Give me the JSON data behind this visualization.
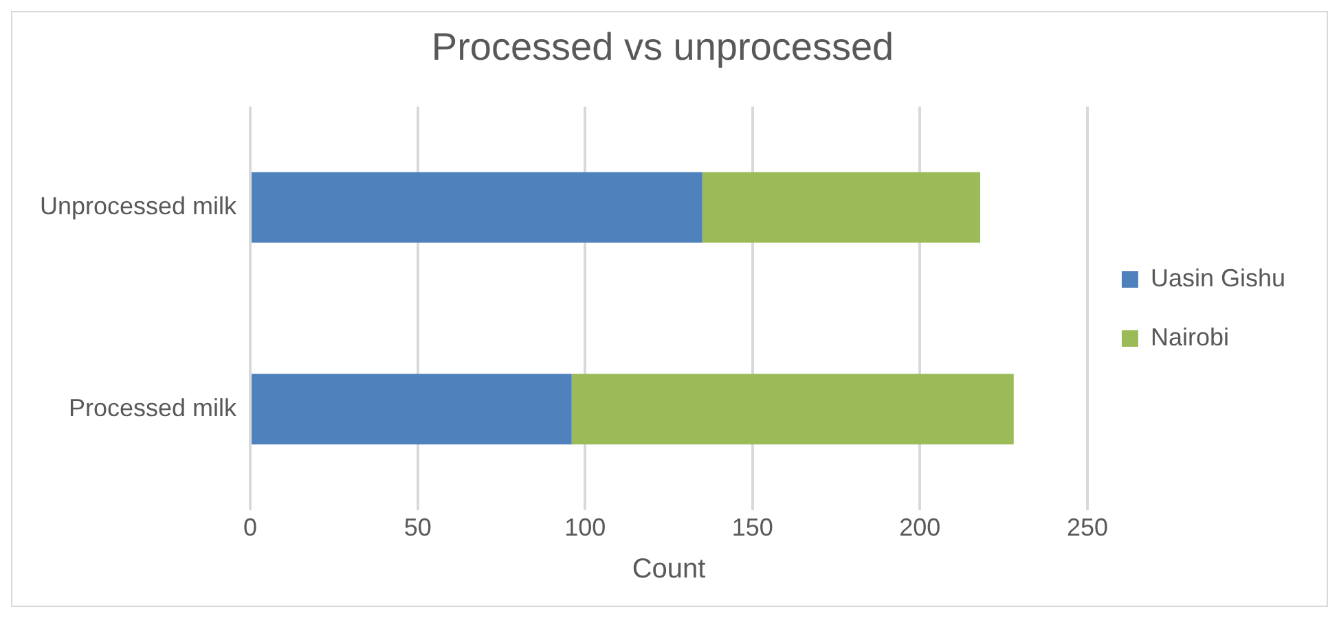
{
  "chart_data": {
    "type": "bar",
    "title": "Processed vs unprocessed",
    "xlabel": "Count",
    "orientation": "horizontal",
    "stacked": true,
    "categories": [
      "Unprocessed milk",
      "Processed milk"
    ],
    "series": [
      {
        "name": "Uasin Gishu",
        "color": "#4f81bd",
        "values": [
          135,
          96
        ]
      },
      {
        "name": "Nairobi",
        "color": "#9bbb59",
        "values": [
          83,
          132
        ]
      }
    ],
    "xlim": [
      0,
      250
    ],
    "xticks": [
      0,
      50,
      100,
      150,
      200,
      250
    ],
    "grid": "x",
    "legend": "right"
  }
}
